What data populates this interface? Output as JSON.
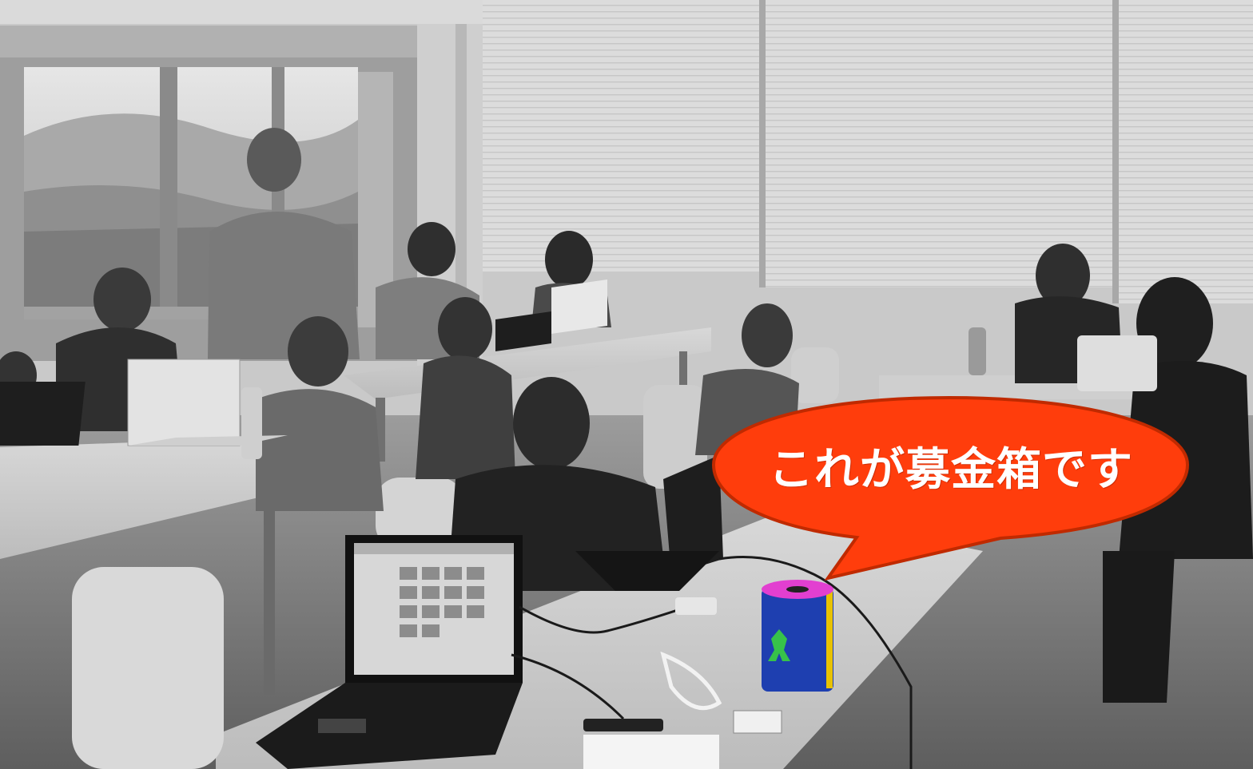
{
  "photo": {
    "description_icon": "classroom-photo",
    "tone": "grayscale"
  },
  "callout": {
    "text": "これが募金箱です",
    "fill_color": "#ff3d0c",
    "stroke_color": "#c02a00",
    "text_color": "#ffffff"
  },
  "donation_box": {
    "body_color": "#1e3fb0",
    "lid_color": "#e23fd0",
    "stripe_color": "#e8c200",
    "figure_color": "#37c24a"
  }
}
